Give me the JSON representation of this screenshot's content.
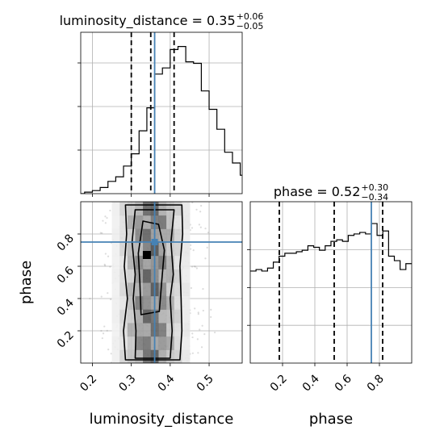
{
  "chart_data": [
    {
      "panel": "luminosity_distance-marginal",
      "type": "histogram",
      "title": {
        "base": "luminosity_distance = 0.35",
        "sup": "+0.06",
        "sub": "−0.05"
      },
      "xlim": [
        0.17,
        0.585
      ],
      "ylim": [
        0,
        1.0
      ],
      "bins_start": 0.18,
      "bin_width": 0.02,
      "values": [
        0.01,
        0.02,
        0.04,
        0.08,
        0.11,
        0.18,
        0.26,
        0.41,
        0.56,
        0.78,
        0.82,
        0.94,
        0.96,
        0.86,
        0.85,
        0.67,
        0.55,
        0.42,
        0.27,
        0.2,
        0.12,
        0.11,
        0.06,
        0.05,
        0.03,
        0.02,
        0.02,
        0.01,
        0.01,
        0.005
      ],
      "quantiles": [
        0.3,
        0.35,
        0.41
      ],
      "truth": 0.36,
      "grid": true
    },
    {
      "panel": "phase-marginal",
      "type": "histogram",
      "title": {
        "base": "phase = 0.52",
        "sup": "+0.30",
        "sub": "−0.34"
      },
      "xlim": [
        0.0,
        1.0
      ],
      "ylim": [
        0,
        1.0
      ],
      "bins_start": 0.0,
      "bin_width": 0.0357,
      "values": [
        0.62,
        0.63,
        0.62,
        0.64,
        0.68,
        0.72,
        0.74,
        0.74,
        0.75,
        0.76,
        0.79,
        0.78,
        0.76,
        0.79,
        0.82,
        0.83,
        0.82,
        0.86,
        0.87,
        0.88,
        0.87,
        0.94,
        0.86,
        0.89,
        0.72,
        0.69,
        0.63,
        0.67,
        0.67
      ],
      "quantiles": [
        0.18,
        0.52,
        0.82
      ],
      "truth": 0.75,
      "xticks": [
        "0.2",
        "0.4",
        "0.6",
        "0.8"
      ],
      "xlabel": "phase",
      "grid": true
    },
    {
      "panel": "joint",
      "type": "scatter-density-contour",
      "xlim": [
        0.17,
        0.585
      ],
      "ylim": [
        0.0,
        1.0
      ],
      "xticks": [
        "0.2",
        "0.3",
        "0.4",
        "0.5"
      ],
      "yticks": [
        "0.2",
        "0.4",
        "0.6",
        "0.8"
      ],
      "xlabel": "luminosity_distance",
      "ylabel": "phase",
      "truth": {
        "x": 0.36,
        "y": 0.75
      },
      "density_column_weights": [
        0.05,
        0.2,
        0.45,
        0.75,
        0.95,
        1.0,
        0.8,
        0.5,
        0.25,
        0.1
      ],
      "density_x_bounds": [
        0.25,
        0.45
      ],
      "peak": {
        "x": 0.34,
        "y": 0.67
      },
      "contours": [
        {
          "level": "outer",
          "path": [
            [
              0.285,
              0.02
            ],
            [
              0.28,
              0.2
            ],
            [
              0.29,
              0.4
            ],
            [
              0.282,
              0.6
            ],
            [
              0.288,
              0.8
            ],
            [
              0.285,
              0.98
            ],
            [
              0.43,
              0.98
            ],
            [
              0.432,
              0.8
            ],
            [
              0.425,
              0.6
            ],
            [
              0.428,
              0.4
            ],
            [
              0.43,
              0.2
            ],
            [
              0.425,
              0.02
            ]
          ]
        },
        {
          "level": "middle",
          "path": [
            [
              0.31,
              0.03
            ],
            [
              0.312,
              0.2
            ],
            [
              0.305,
              0.4
            ],
            [
              0.31,
              0.55
            ],
            [
              0.302,
              0.75
            ],
            [
              0.31,
              0.95
            ],
            [
              0.41,
              0.95
            ],
            [
              0.402,
              0.75
            ],
            [
              0.408,
              0.55
            ],
            [
              0.4,
              0.4
            ],
            [
              0.405,
              0.2
            ],
            [
              0.4,
              0.03
            ]
          ]
        },
        {
          "level": "inner",
          "path": [
            [
              0.325,
              0.3
            ],
            [
              0.322,
              0.5
            ],
            [
              0.318,
              0.68
            ],
            [
              0.33,
              0.88
            ],
            [
              0.37,
              0.86
            ],
            [
              0.385,
              0.7
            ],
            [
              0.378,
              0.5
            ],
            [
              0.372,
              0.32
            ]
          ]
        }
      ]
    }
  ],
  "colors": {
    "truth": "#4682b4",
    "hist": "#000000",
    "grid": "#b0b0b0",
    "points": "#9a9a9a"
  }
}
